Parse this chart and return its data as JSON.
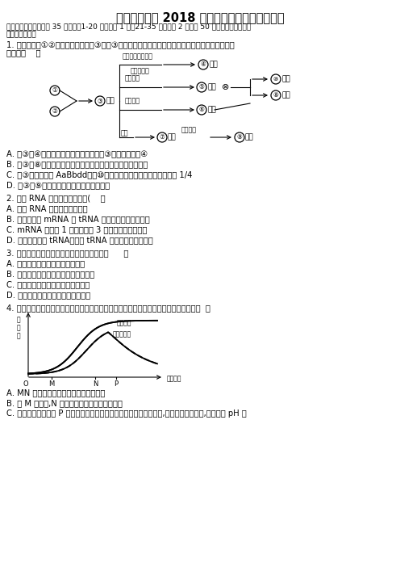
{
  "title": "宁夏达标名校 2018 年高考一月大联考生物试卷",
  "bg_color": "#ffffff",
  "text_color": "#000000",
  "font_size_title": 10.5,
  "font_size_body": 7.2,
  "font_size_small": 6.5,
  "section1_line1": "一、单选题（本题包括 35 个小题，1-20 题每小题 1 分，21-35 题每小题 2 分，共 50 分。每小题只有一个",
  "section1_line2": "选项符合题意）",
  "q1_line1": "1. 如图表示将①②两个植株杂交得到③，将③作进一步处理分别培育出不同品种的过程。下列分析错",
  "q1_line2": "误的是（    ）",
  "q1_options": [
    "A. 由③到④因是人工诱变育种过程，所以③可定向变异为④",
    "B. 由③到⑧的育种过程中，遵循的主要原理是染色体数目变异",
    "C. 若③的基因型为 AaBbdd，则⑩植株中能稳定遗传的个体占总数的 1/4",
    "D. 由③到⑨的育种方式可明显缩短育种年限"
  ],
  "q2_stem": "2. 关于 RNA 的叙述，错误的是(    ）",
  "q2_options": [
    "A. 少数 RNA 具有生物催化作用",
    "B. 真核细胞内 mRNA 和 tRNA 都是在细胞质中合成的",
    "C. mRNA 上决定 1 个氨基酸的 3 个相邻碱基为密码子",
    "D. 细胞中有多种 tRNA，一种 tRNA 只能转运一种氨基酸"
  ],
  "q3_stem": "3. 下列有关细胞生命历程的叙述，正确的是（      ）",
  "q3_options": [
    "A. 红细胞的自然更新属于细胞坏死",
    "B. 红细胞来源于造血干细胞的增殖分化",
    "C. 细胞在衰老过程中所有酶活性降低",
    "D. 原癌基因突变即可导致癌症的发生"
  ],
  "q4_stem": "4. 下图是探究影响酵母菌种群数量变化因素时所获得的实验结果。有关分析不正确的是（  ）",
  "q4_options": [
    "A. MN 时期酵母菌的呼吸方式为无氧呼吸",
    "B. 与 M 点相比,N 点时酵母菌种内斗争更为激烈",
    "C. 酵母菌种群数量从 P 点开始下降的主要原因是营养物质大量消耗外,还有酒精浓度过高,培养液的 pH 下"
  ],
  "graph_label_alcohol": "酒精浓度",
  "graph_label_yeast": "酵母菌数量",
  "graph_ylabel": "相\n对\n值",
  "graph_xlabel": "发酵时间",
  "graph_ticks": [
    "O",
    "M",
    "N",
    "P"
  ]
}
